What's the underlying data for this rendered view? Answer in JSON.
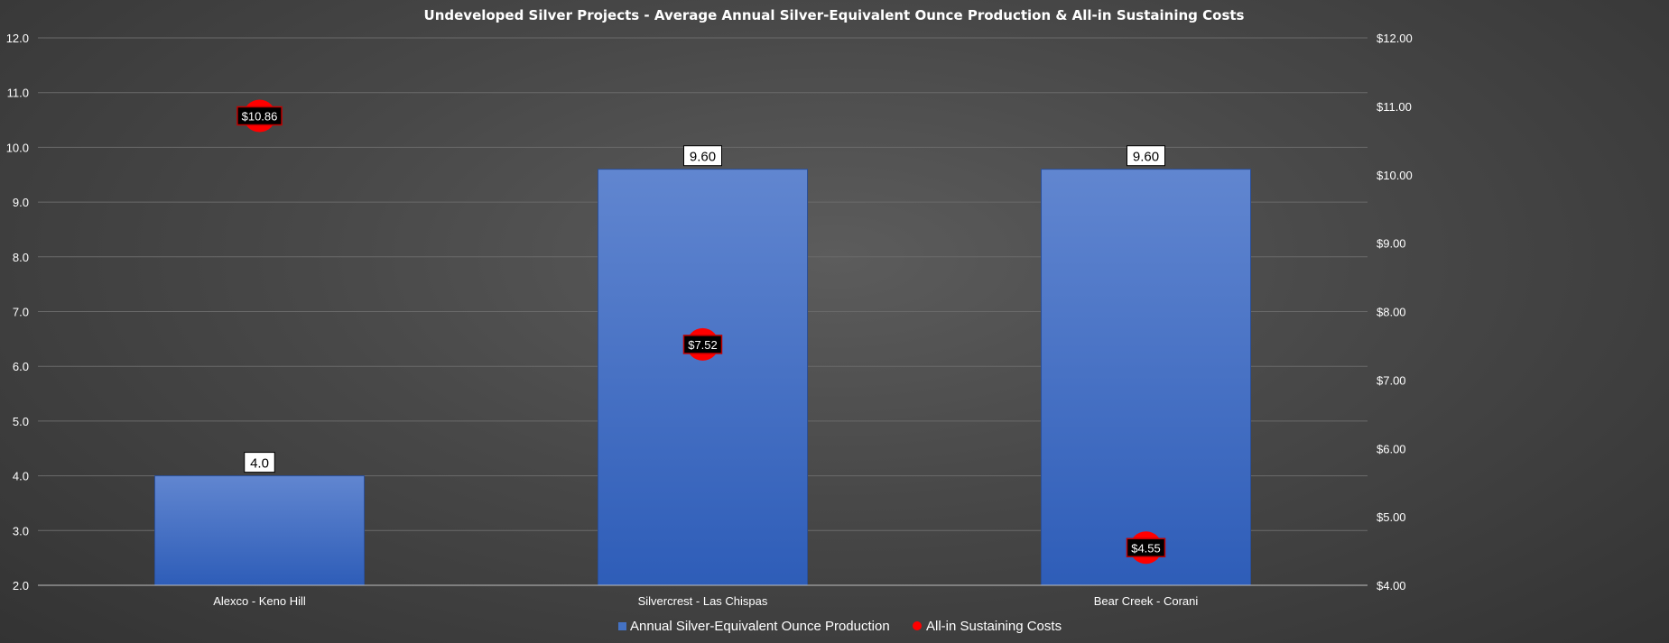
{
  "chart_data": {
    "type": "bar",
    "title": "Undeveloped Silver Projects - Average Annual Silver-Equivalent Ounce Production & All-in Sustaining Costs",
    "categories": [
      "Alexco - Keno Hill",
      "Silvercrest - Las Chispas",
      "Bear Creek - Corani"
    ],
    "series": [
      {
        "name": "Annual Silver-Equivalent Ounce Production",
        "type": "bar",
        "axis": "left",
        "values": [
          4.0,
          9.6,
          9.6
        ],
        "labels": [
          "4.0",
          "9.60",
          "9.60"
        ],
        "color": "#4472c4"
      },
      {
        "name": "All-in Sustaining Costs",
        "type": "scatter",
        "axis": "right",
        "values": [
          10.86,
          7.52,
          4.55
        ],
        "labels": [
          "$10.86",
          "$7.52",
          "$4.55"
        ],
        "color": "#ff0000"
      }
    ],
    "y_left": {
      "ylim": [
        2.0,
        12.0
      ],
      "ticks": [
        2.0,
        3.0,
        4.0,
        5.0,
        6.0,
        7.0,
        8.0,
        9.0,
        10.0,
        11.0,
        12.0
      ],
      "tick_labels": [
        "2.0",
        "3.0",
        "4.0",
        "5.0",
        "6.0",
        "7.0",
        "8.0",
        "9.0",
        "10.0",
        "11.0",
        "12.0"
      ]
    },
    "y_right": {
      "ylim": [
        4.0,
        12.0
      ],
      "ticks": [
        4,
        5,
        6,
        7,
        8,
        9,
        10,
        11,
        12
      ],
      "tick_labels": [
        "$4.00",
        "$5.00",
        "$6.00",
        "$7.00",
        "$8.00",
        "$9.00",
        "$10.00",
        "$11.00",
        "$12.00"
      ]
    },
    "grid": true,
    "legend": "bottom"
  }
}
